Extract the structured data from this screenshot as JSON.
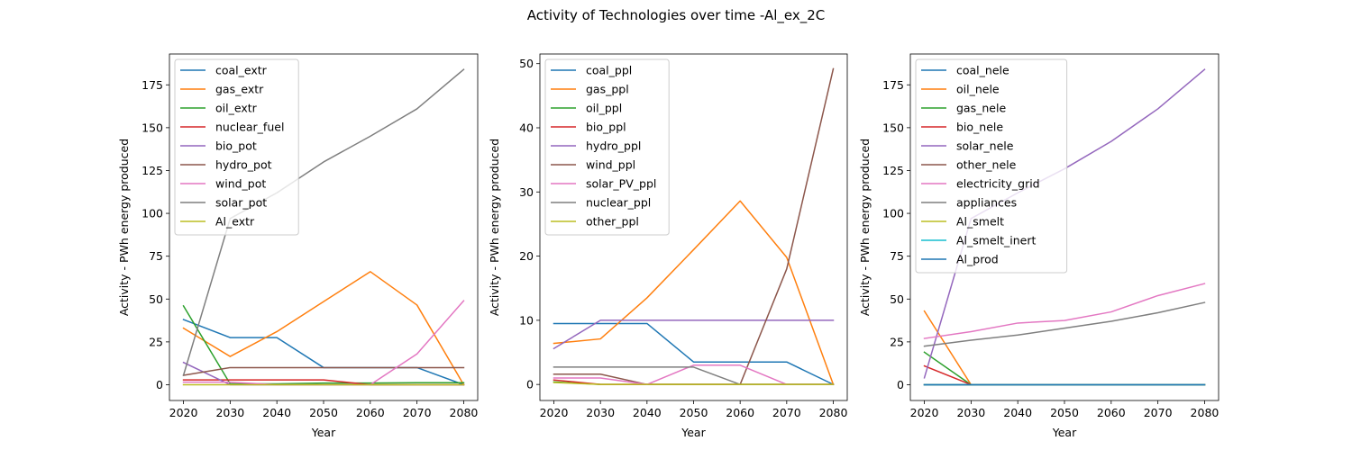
{
  "figure": {
    "title": "Activity of Technologies over time -Al_ex_2C"
  },
  "chart_data": [
    {
      "type": "line",
      "title": "",
      "xlabel": "Year",
      "ylabel": "Activity - PWh energy produced",
      "x": [
        2020,
        2030,
        2040,
        2050,
        2060,
        2070,
        2080
      ],
      "xlim": [
        2017,
        2083
      ],
      "ylim": [
        -9.2,
        193
      ],
      "xticks": [
        "2020",
        "2030",
        "2040",
        "2050",
        "2060",
        "2070",
        "2080"
      ],
      "yticks": [
        "0",
        "25",
        "50",
        "75",
        "100",
        "125",
        "150",
        "175"
      ],
      "grid": false,
      "legend_position": "upper-left",
      "series": [
        {
          "name": "coal_extr",
          "color": "#1f77b4",
          "values": [
            38,
            27.5,
            27.5,
            10,
            10,
            10,
            0
          ]
        },
        {
          "name": "gas_extr",
          "color": "#ff7f0e",
          "values": [
            33,
            16.5,
            31,
            48.5,
            66,
            46.5,
            0
          ]
        },
        {
          "name": "oil_extr",
          "color": "#2ca02c",
          "values": [
            46,
            0.5,
            0.5,
            1,
            1,
            1.2,
            1.2
          ]
        },
        {
          "name": "nuclear_fuel",
          "color": "#d62728",
          "values": [
            2.8,
            2.8,
            2.8,
            2.8,
            0,
            0,
            0
          ]
        },
        {
          "name": "bio_pot",
          "color": "#9467bd",
          "values": [
            13,
            0,
            0,
            0,
            0,
            0,
            0
          ]
        },
        {
          "name": "hydro_pot",
          "color": "#8c564b",
          "values": [
            5.5,
            10,
            10,
            10,
            10,
            10,
            10
          ]
        },
        {
          "name": "wind_pot",
          "color": "#e377c2",
          "values": [
            1.5,
            1.5,
            0,
            0,
            0,
            18,
            49
          ]
        },
        {
          "name": "solar_pot",
          "color": "#7f7f7f",
          "values": [
            5.5,
            97,
            112,
            130,
            145,
            161,
            184
          ]
        },
        {
          "name": "Al_extr",
          "color": "#bcbd22",
          "values": [
            0,
            0,
            0,
            0,
            0,
            0,
            0
          ]
        }
      ]
    },
    {
      "type": "line",
      "title": "",
      "xlabel": "Year",
      "ylabel": "Activity - PWh energy produced",
      "x": [
        2020,
        2030,
        2040,
        2050,
        2060,
        2070,
        2080
      ],
      "xlim": [
        2017,
        2083
      ],
      "ylim": [
        -2.5,
        51.5
      ],
      "xticks": [
        "2020",
        "2030",
        "2040",
        "2050",
        "2060",
        "2070",
        "2080"
      ],
      "yticks": [
        "0",
        "10",
        "20",
        "30",
        "40",
        "50"
      ],
      "grid": false,
      "legend_position": "upper-left",
      "series": [
        {
          "name": "coal_ppl",
          "color": "#1f77b4",
          "values": [
            9.5,
            9.5,
            9.5,
            3.5,
            3.5,
            3.5,
            0
          ]
        },
        {
          "name": "gas_ppl",
          "color": "#ff7f0e",
          "values": [
            6.4,
            7.1,
            13.5,
            21,
            28.6,
            19.8,
            0
          ]
        },
        {
          "name": "oil_ppl",
          "color": "#2ca02c",
          "values": [
            0.4,
            0,
            0,
            0,
            0,
            0,
            0
          ]
        },
        {
          "name": "bio_ppl",
          "color": "#d62728",
          "values": [
            0.7,
            0,
            0,
            0,
            0,
            0,
            0
          ]
        },
        {
          "name": "hydro_ppl",
          "color": "#9467bd",
          "values": [
            5.6,
            10,
            10,
            10,
            10,
            10,
            10
          ]
        },
        {
          "name": "wind_ppl",
          "color": "#8c564b",
          "values": [
            1.6,
            1.6,
            0,
            0,
            0,
            18,
            49.2
          ]
        },
        {
          "name": "solar_PV_ppl",
          "color": "#e377c2",
          "values": [
            1,
            1,
            0,
            3,
            3,
            0,
            0
          ]
        },
        {
          "name": "nuclear_ppl",
          "color": "#7f7f7f",
          "values": [
            2.7,
            2.7,
            2.7,
            2.7,
            0,
            0,
            0
          ]
        },
        {
          "name": "other_ppl",
          "color": "#bcbd22",
          "values": [
            0.3,
            0,
            0,
            0,
            0,
            0,
            0
          ]
        }
      ]
    },
    {
      "type": "line",
      "title": "",
      "xlabel": "Year",
      "ylabel": "Activity - PWh energy produced",
      "x": [
        2020,
        2030,
        2040,
        2050,
        2060,
        2070,
        2080
      ],
      "xlim": [
        2017,
        2083
      ],
      "ylim": [
        -9.2,
        193
      ],
      "xticks": [
        "2020",
        "2030",
        "2040",
        "2050",
        "2060",
        "2070",
        "2080"
      ],
      "yticks": [
        "0",
        "25",
        "50",
        "75",
        "100",
        "125",
        "150",
        "175"
      ],
      "grid": false,
      "legend_position": "upper-left",
      "series": [
        {
          "name": "coal_nele",
          "color": "#1f77b4",
          "values": [
            0,
            0,
            0,
            0,
            0,
            0,
            0
          ]
        },
        {
          "name": "oil_nele",
          "color": "#ff7f0e",
          "values": [
            43,
            0,
            0,
            0,
            0,
            0,
            0
          ]
        },
        {
          "name": "gas_nele",
          "color": "#2ca02c",
          "values": [
            19,
            0,
            0,
            0,
            0,
            0,
            0
          ]
        },
        {
          "name": "bio_nele",
          "color": "#d62728",
          "values": [
            11,
            0,
            0,
            0,
            0,
            0,
            0
          ]
        },
        {
          "name": "solar_nele",
          "color": "#9467bd",
          "values": [
            4,
            97,
            112,
            126,
            142,
            161,
            184
          ]
        },
        {
          "name": "other_nele",
          "color": "#8c564b",
          "values": [
            0,
            0,
            0,
            0,
            0,
            0,
            0
          ]
        },
        {
          "name": "electricity_grid",
          "color": "#e377c2",
          "values": [
            27,
            31,
            36,
            37.5,
            42.5,
            52,
            59
          ]
        },
        {
          "name": "appliances",
          "color": "#7f7f7f",
          "values": [
            22.5,
            26,
            29,
            33,
            37,
            42,
            48
          ]
        },
        {
          "name": "Al_smelt",
          "color": "#bcbd22",
          "values": [
            0,
            0,
            0,
            0,
            0,
            0,
            0
          ]
        },
        {
          "name": "Al_smelt_inert",
          "color": "#17becf",
          "values": [
            0,
            0,
            0,
            0,
            0,
            0,
            0
          ]
        },
        {
          "name": "Al_prod",
          "color": "#1f77b4",
          "values": [
            0,
            0,
            0,
            0,
            0,
            0,
            0
          ]
        }
      ]
    }
  ]
}
